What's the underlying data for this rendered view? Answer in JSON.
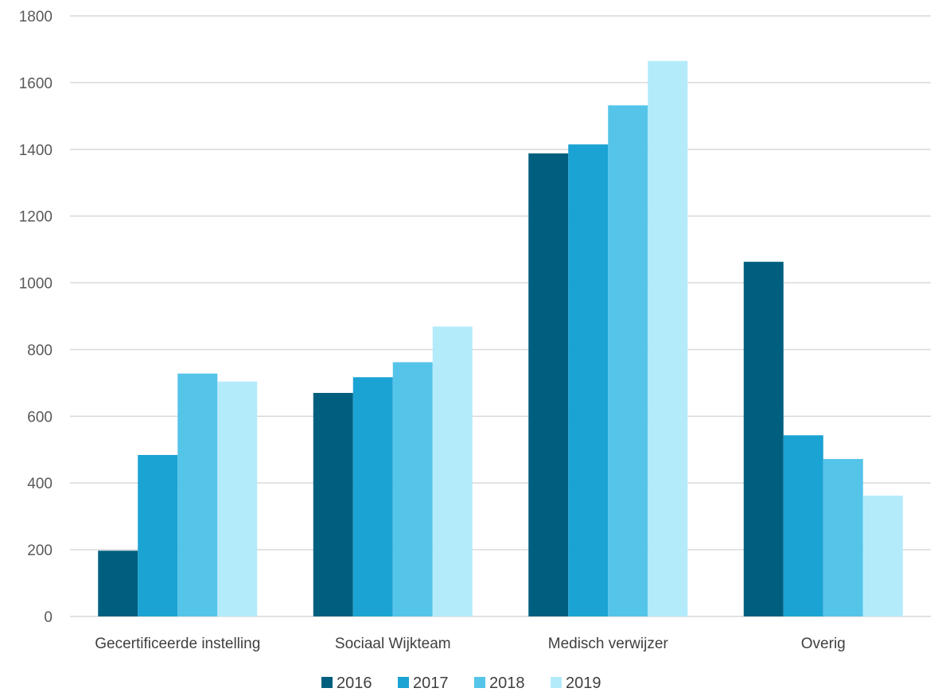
{
  "chart_data": {
    "type": "bar",
    "categories": [
      "Gecertificeerde instelling",
      "Sociaal Wijkteam",
      "Medisch verwijzer",
      "Overig"
    ],
    "series": [
      {
        "name": "2016",
        "color": "#005f7f",
        "values": [
          197,
          670,
          1388,
          1063
        ]
      },
      {
        "name": "2017",
        "color": "#1ba3d4",
        "values": [
          484,
          717,
          1415,
          543
        ]
      },
      {
        "name": "2018",
        "color": "#55c4e9",
        "values": [
          728,
          762,
          1532,
          472
        ]
      },
      {
        "name": "2019",
        "color": "#b4ebfb",
        "values": [
          704,
          869,
          1665,
          362
        ]
      }
    ],
    "yticks": [
      "0",
      "200",
      "400",
      "600",
      "800",
      "1000",
      "1200",
      "1400",
      "1600",
      "1800"
    ],
    "ylim": [
      0,
      1800
    ],
    "grid": true,
    "legend_position": "bottom"
  }
}
